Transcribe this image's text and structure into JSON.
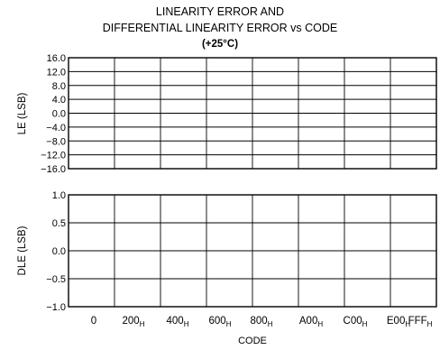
{
  "chart_data": {
    "type": "line",
    "title_lines": [
      "LINEARITY ERROR AND",
      "DIFFERENTIAL LINEARITY ERROR vs CODE",
      "(+25°C)"
    ],
    "xlabel": "CODE",
    "x_ticks": [
      {
        "base": "0",
        "sub": ""
      },
      {
        "base": "200",
        "sub": "H"
      },
      {
        "base": "400",
        "sub": "H"
      },
      {
        "base": "600",
        "sub": "H"
      },
      {
        "base": "800",
        "sub": "H"
      },
      {
        "base": "A00",
        "sub": "H"
      },
      {
        "base": "C00",
        "sub": "H"
      },
      {
        "base": "E00",
        "sub": "H"
      },
      {
        "base": "FFF",
        "sub": "H"
      }
    ],
    "panels": [
      {
        "ylabel": "LE (LSB)",
        "ylim": [
          -16.0,
          16.0
        ],
        "y_ticks": [
          "16.0",
          "12.0",
          "8.0",
          "4.0",
          "0.0",
          "−4.0",
          "−8.0",
          "−12.0",
          "−16.0"
        ],
        "grid": true,
        "series": []
      },
      {
        "ylabel": "DLE (LSB)",
        "ylim": [
          -1.0,
          1.0
        ],
        "y_ticks": [
          "1.0",
          "0.5",
          "0.0",
          "−0.5",
          "−1.0"
        ],
        "grid": true,
        "series": []
      }
    ]
  }
}
